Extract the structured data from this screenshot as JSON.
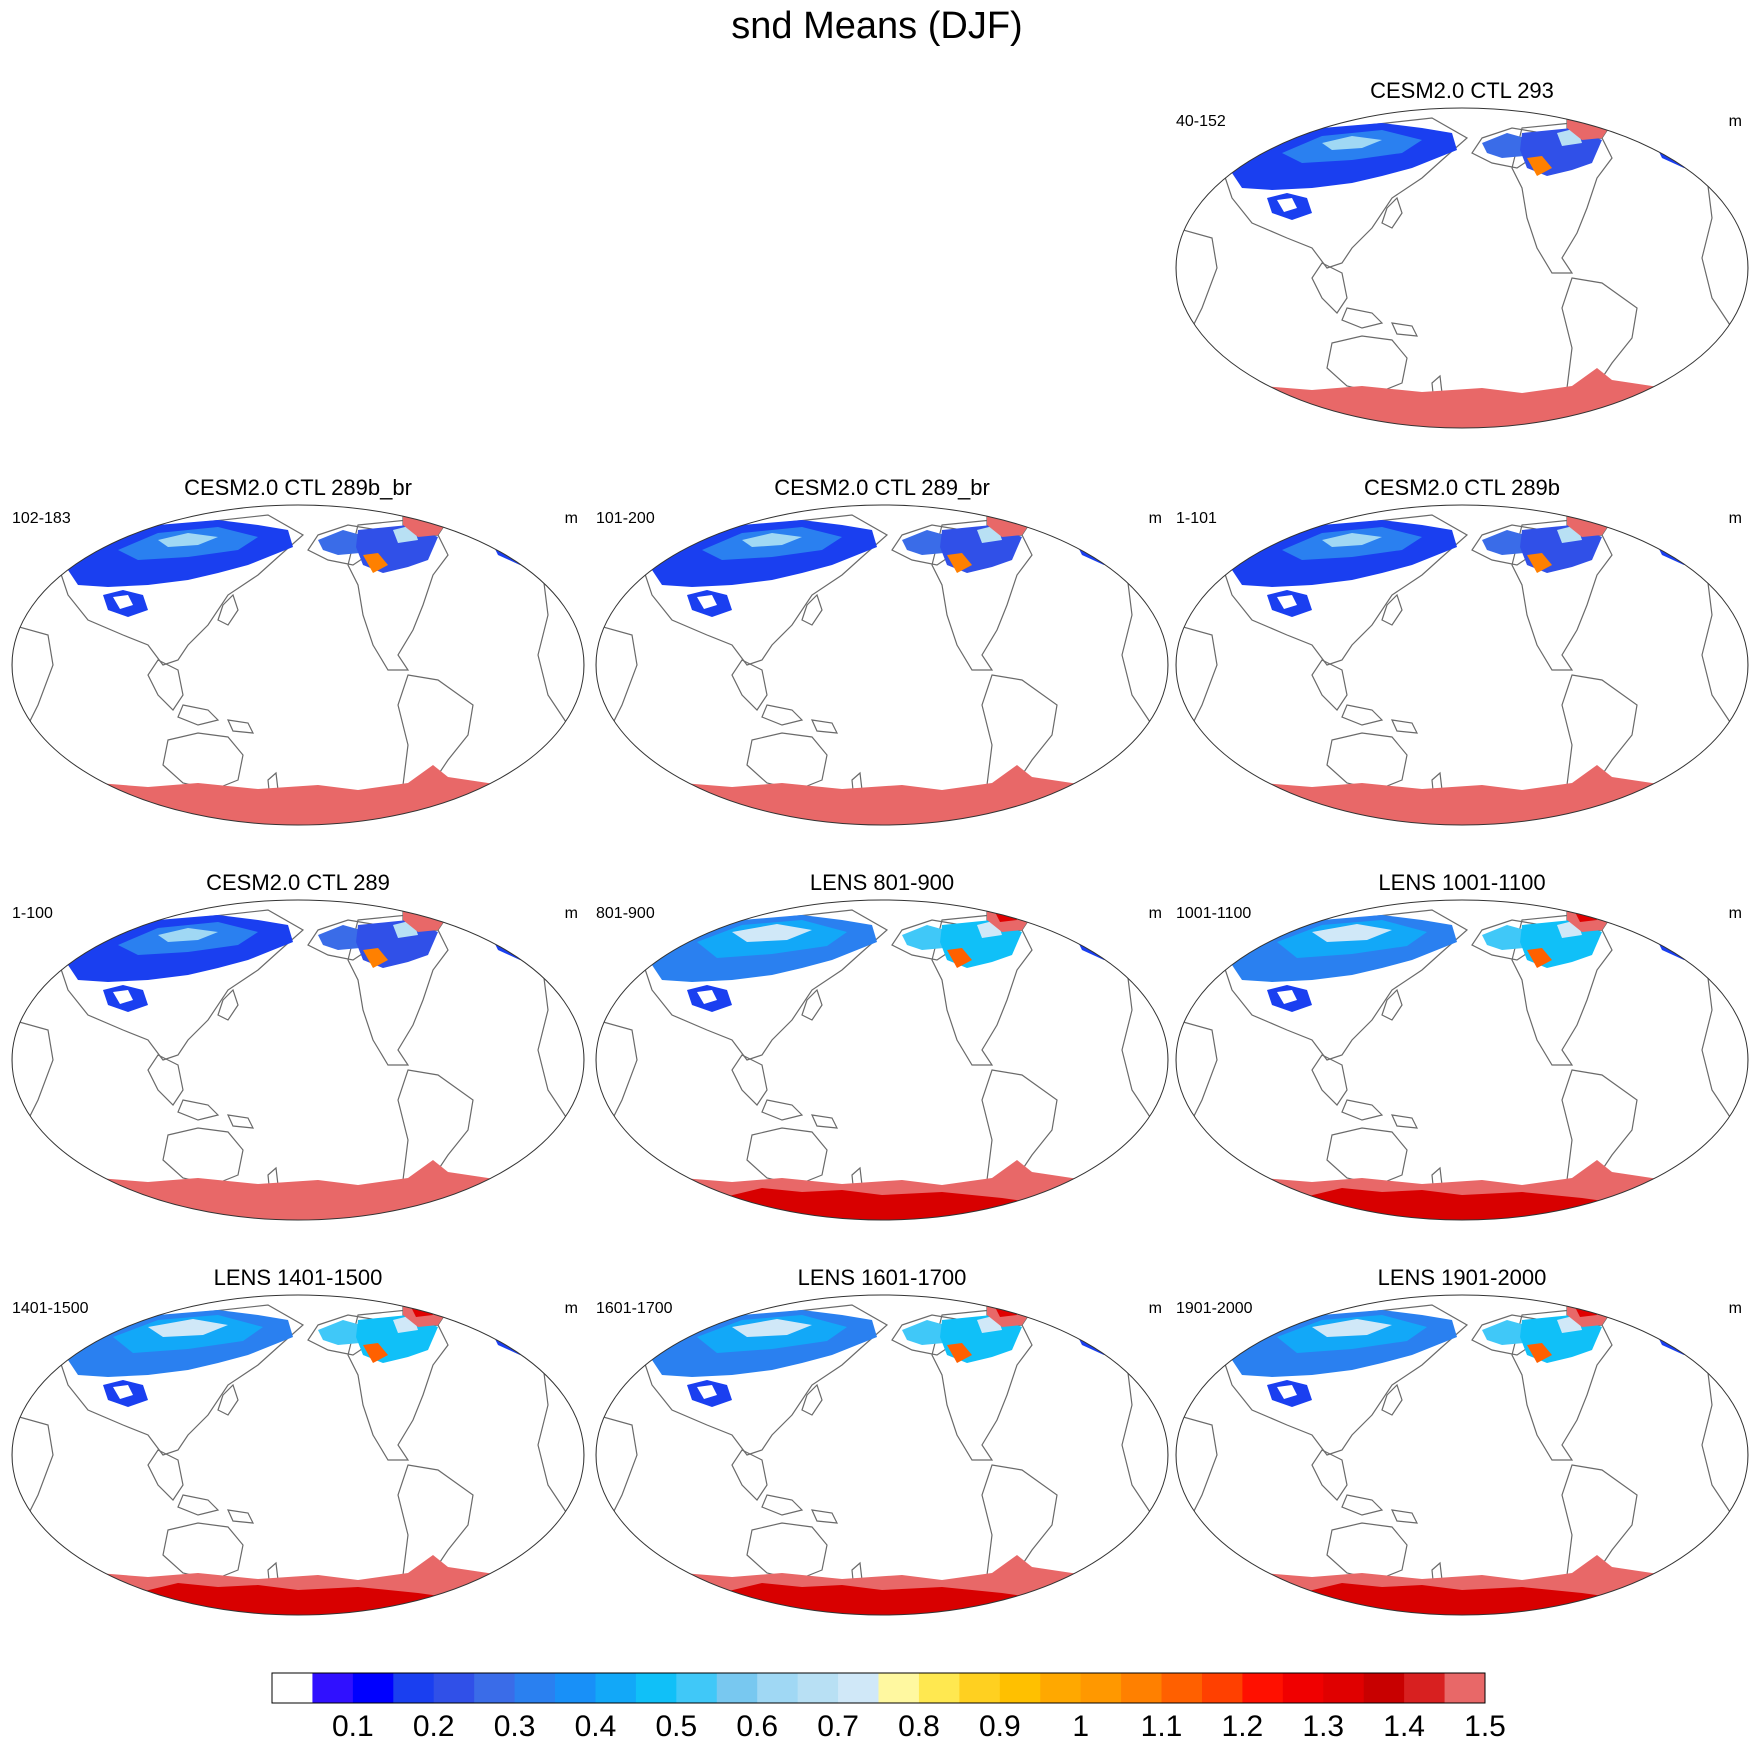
{
  "chart_data": {
    "type": "heatmap",
    "title": "snd Means (DJF)",
    "colorbar": {
      "labels": [
        "0.1",
        "0.2",
        "0.3",
        "0.4",
        "0.5",
        "0.6",
        "0.7",
        "0.8",
        "0.9",
        "1",
        "1.1",
        "1.2",
        "1.3",
        "1.4",
        "1.5"
      ],
      "colors": [
        "#ffffff",
        "#3010ff",
        "#0000ff",
        "#1a3ff0",
        "#3050e8",
        "#3a6ce8",
        "#2a80f0",
        "#1890f8",
        "#12a8f8",
        "#10c0f8",
        "#40c8f8",
        "#78c8f0",
        "#a0d8f4",
        "#b8e0f4",
        "#d0e8f8",
        "#fff8a0",
        "#ffe850",
        "#ffd020",
        "#ffc000",
        "#ffa800",
        "#ff9800",
        "#ff8000",
        "#ff6000",
        "#ff4000",
        "#ff1000",
        "#f00000",
        "#e00000",
        "#c80000",
        "#d82020",
        "#e86868"
      ]
    },
    "panels": [
      {
        "title": "CESM2.0 CTL 293",
        "years": "40-152",
        "units": "m"
      },
      {
        "title": "CESM2.0 CTL 289b_br",
        "years": "102-183",
        "units": "m"
      },
      {
        "title": "CESM2.0 CTL 289_br",
        "years": "101-200",
        "units": "m"
      },
      {
        "title": "CESM2.0 CTL 289b",
        "years": "1-101",
        "units": "m"
      },
      {
        "title": "CESM2.0 CTL 289",
        "years": "1-100",
        "units": "m"
      },
      {
        "title": "LENS 801-900",
        "years": "801-900",
        "units": "m"
      },
      {
        "title": "LENS 1001-1100",
        "years": "1001-1100",
        "units": "m"
      },
      {
        "title": "LENS 1401-1500",
        "years": "1401-1500",
        "units": "m"
      },
      {
        "title": "LENS 1601-1700",
        "years": "1601-1700",
        "units": "m"
      },
      {
        "title": "LENS 1901-2000",
        "years": "1901-2000",
        "units": "m"
      }
    ]
  }
}
